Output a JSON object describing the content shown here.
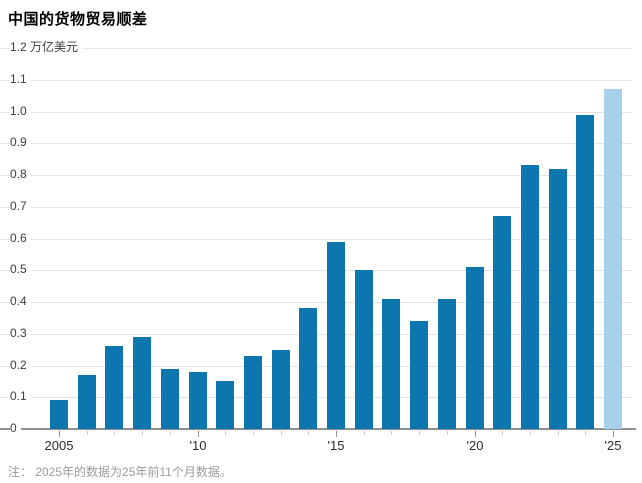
{
  "title": "中国的货物贸易顺差",
  "note": "注： 2025年的数据为25年前11个月数据。",
  "colors": {
    "bar": "#0d76ae",
    "bar_highlight": "#a7d0eb",
    "gridline": "#e4e4e4",
    "axis": "#8f8f8f",
    "tick_minor": "#cccccc",
    "tick_major": "#8f8f8f"
  },
  "chart_data": {
    "type": "bar",
    "title": "中国的货物贸易顺差",
    "unit_label": "万亿美元",
    "categories": [
      2005,
      2006,
      2007,
      2008,
      2009,
      2010,
      2011,
      2012,
      2013,
      2014,
      2015,
      2016,
      2017,
      2018,
      2019,
      2020,
      2021,
      2022,
      2023,
      2024,
      2025
    ],
    "values": [
      0.09,
      0.17,
      0.26,
      0.29,
      0.19,
      0.18,
      0.15,
      0.23,
      0.25,
      0.38,
      0.59,
      0.5,
      0.41,
      0.34,
      0.41,
      0.51,
      0.67,
      0.83,
      0.82,
      0.99,
      1.07
    ],
    "highlight_index": 20,
    "highlight_meaning": "2025年前11个月数据",
    "ylim": [
      0,
      1.2
    ],
    "grid": true,
    "y_tick_labels": [
      "1.2 万亿美元",
      "1.1",
      "1.0",
      "0.9",
      "0.8",
      "0.7",
      "0.6",
      "0.5",
      "0.4",
      "0.3",
      "0.2",
      "0.1",
      "0"
    ],
    "x_ticks": [
      {
        "label": "2005",
        "index": 0
      },
      {
        "label": "'10",
        "index": 5
      },
      {
        "label": "'15",
        "index": 10
      },
      {
        "label": "'20",
        "index": 15
      },
      {
        "label": "'25",
        "index": 20
      }
    ]
  }
}
